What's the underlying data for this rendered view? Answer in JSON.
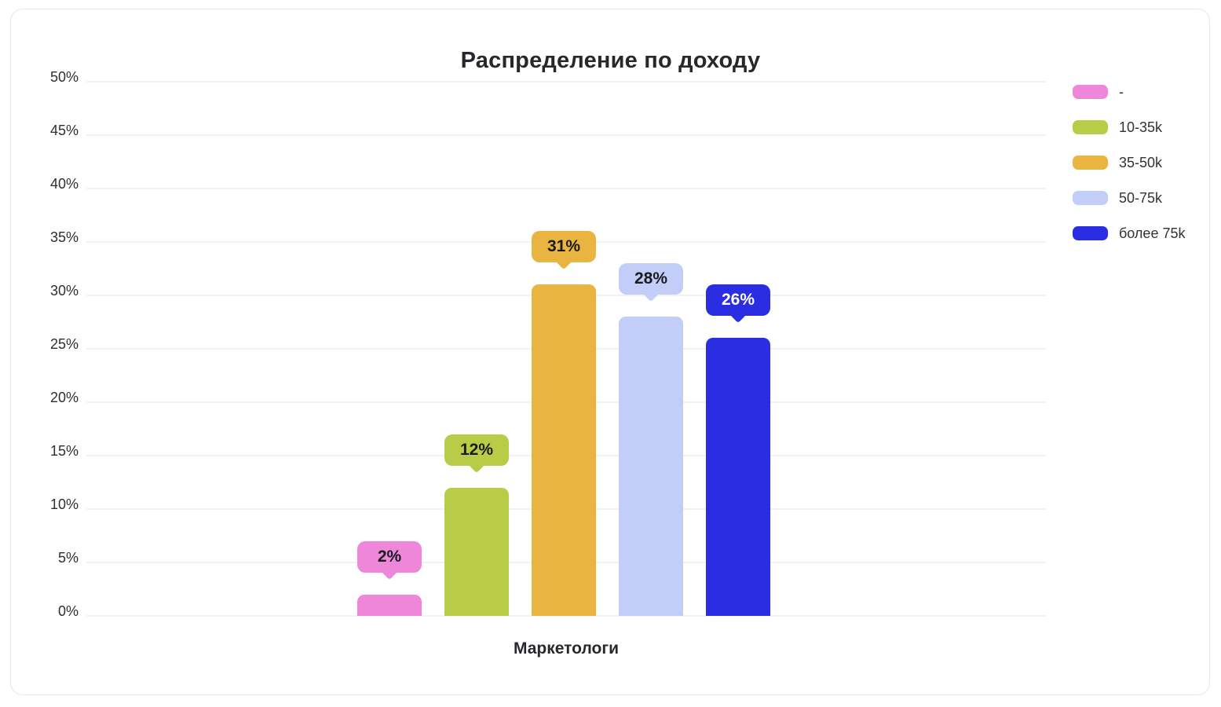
{
  "page": {
    "background": "#ffffff",
    "card_border_color": "#e7e7ea",
    "gridline_color": "#f2f2f4"
  },
  "chart_data": {
    "type": "bar",
    "title": "Распределение по доходу",
    "xlabel": "Маркетологи",
    "categories": [
      "Маркетологи"
    ],
    "series": [
      {
        "name": "-",
        "value": 2,
        "label": "2%",
        "color": "#ee87da",
        "label_text_color": "#1a1b1e"
      },
      {
        "name": "10-35k",
        "value": 12,
        "label": "12%",
        "color": "#b8cc48",
        "label_text_color": "#1a1b1e"
      },
      {
        "name": "35-50k",
        "value": 31,
        "label": "31%",
        "color": "#e9b440",
        "label_text_color": "#1a1b1e"
      },
      {
        "name": "50-75k",
        "value": 28,
        "label": "28%",
        "color": "#c2cef7",
        "label_text_color": "#1a1b1e"
      },
      {
        "name": "более 75k",
        "value": 26,
        "label": "26%",
        "color": "#2a2de2",
        "label_text_color": "#ffffff"
      }
    ],
    "ylim": [
      0,
      50
    ],
    "ytick_step": 5,
    "yticks": [
      "0%",
      "5%",
      "10%",
      "15%",
      "20%",
      "25%",
      "30%",
      "35%",
      "40%",
      "45%",
      "50%"
    ],
    "grid": true,
    "legend_position": "right"
  }
}
